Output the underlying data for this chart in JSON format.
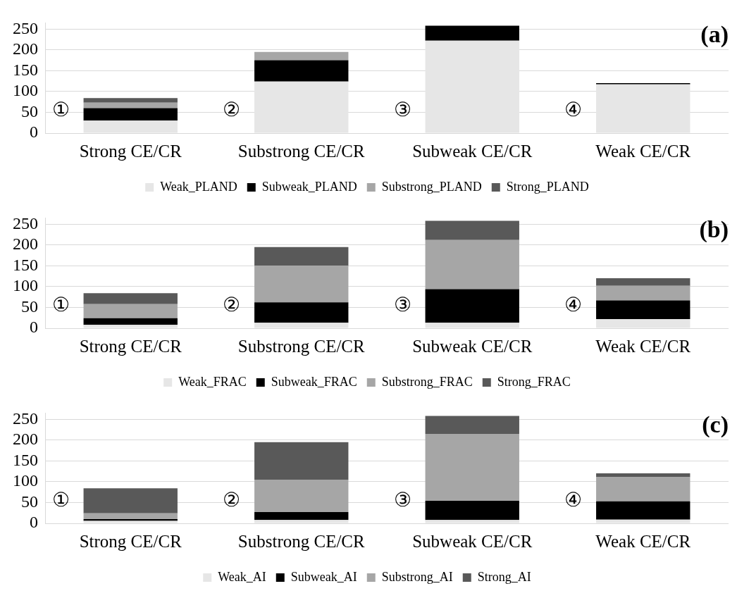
{
  "chart_data": [
    {
      "type": "bar",
      "title": "(a)",
      "stacked": true,
      "categories": [
        "Strong CE/CR",
        "Substrong CE/CR",
        "Subweak CE/CR",
        "Weak CE/CR"
      ],
      "ylim": [
        0,
        265
      ],
      "yticks": [
        0,
        50,
        100,
        150,
        200,
        250
      ],
      "grid": "y",
      "legend": "bottom",
      "series": [
        {
          "name": "Weak_PLAND",
          "color": "#e6e6e6",
          "values": [
            30,
            124,
            222,
            117
          ]
        },
        {
          "name": "Subweak_PLAND",
          "color": "#000000",
          "values": [
            30,
            51,
            36,
            3
          ]
        },
        {
          "name": "Substrong_PLAND",
          "color": "#a6a6a6",
          "values": [
            13,
            20,
            0,
            0
          ]
        },
        {
          "name": "Strong_PLAND",
          "color": "#595959",
          "values": [
            11,
            0,
            0,
            0
          ]
        }
      ],
      "annotations": [
        "①",
        "②",
        "③",
        "④"
      ]
    },
    {
      "type": "bar",
      "title": "(b)",
      "stacked": true,
      "categories": [
        "Strong CE/CR",
        "Substrong CE/CR",
        "Subweak CE/CR",
        "Weak CE/CR"
      ],
      "ylim": [
        0,
        265
      ],
      "yticks": [
        0,
        50,
        100,
        150,
        200,
        250
      ],
      "grid": "y",
      "legend": "bottom",
      "series": [
        {
          "name": "Weak_FRAC",
          "color": "#e6e6e6",
          "values": [
            8,
            13,
            13,
            22
          ]
        },
        {
          "name": "Subweak_FRAC",
          "color": "#000000",
          "values": [
            16,
            49,
            81,
            45
          ]
        },
        {
          "name": "Substrong_FRAC",
          "color": "#a6a6a6",
          "values": [
            34,
            88,
            118,
            35
          ]
        },
        {
          "name": "Strong_FRAC",
          "color": "#595959",
          "values": [
            26,
            45,
            46,
            18
          ]
        }
      ],
      "annotations": [
        "①",
        "②",
        "③",
        "④"
      ]
    },
    {
      "type": "bar",
      "title": "(c)",
      "stacked": true,
      "categories": [
        "Strong CE/CR",
        "Substrong CE/CR",
        "Subweak CE/CR",
        "Weak CE/CR"
      ],
      "ylim": [
        0,
        265
      ],
      "yticks": [
        0,
        50,
        100,
        150,
        200,
        250
      ],
      "grid": "y",
      "legend": "bottom",
      "series": [
        {
          "name": "Weak_AI",
          "color": "#e6e6e6",
          "values": [
            6,
            8,
            8,
            9
          ]
        },
        {
          "name": "Subweak_AI",
          "color": "#000000",
          "values": [
            4,
            19,
            46,
            44
          ]
        },
        {
          "name": "Substrong_AI",
          "color": "#a6a6a6",
          "values": [
            14,
            77,
            161,
            58
          ]
        },
        {
          "name": "Strong_AI",
          "color": "#595959",
          "values": [
            60,
            91,
            43,
            9
          ]
        }
      ],
      "annotations": [
        "①",
        "②",
        "③",
        "④"
      ]
    }
  ]
}
